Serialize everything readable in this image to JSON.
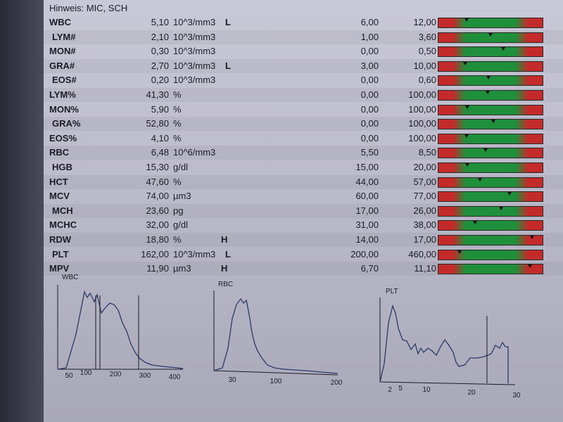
{
  "note": "Hinweis: MIC, SCH",
  "rows": [
    {
      "name": "WBC",
      "value": "5,10",
      "unit": "10^3/mm3",
      "flag": "L",
      "low": "6,00",
      "high": "12,00",
      "level": 0.27
    },
    {
      "name": "LYM#",
      "value": "2,10",
      "unit": "10^3/mm3",
      "flag": "",
      "low": "1,00",
      "high": "3,60",
      "level": 0.5
    },
    {
      "name": "MON#",
      "value": "0,30",
      "unit": "10^3/mm3",
      "flag": "",
      "low": "0,00",
      "high": "0,50",
      "level": 0.62
    },
    {
      "name": "GRA#",
      "value": "2,70",
      "unit": "10^3/mm3",
      "flag": "L",
      "low": "3,00",
      "high": "10,00",
      "level": 0.26
    },
    {
      "name": "EOS#",
      "value": "0,20",
      "unit": "10^3/mm3",
      "flag": "",
      "low": "0,00",
      "high": "0,60",
      "level": 0.48
    },
    {
      "name": "LYM%",
      "value": "41,30",
      "unit": "%",
      "flag": "",
      "low": "0,00",
      "high": "100,00",
      "level": 0.47
    },
    {
      "name": "MON%",
      "value": "5,90",
      "unit": "%",
      "flag": "",
      "low": "0,00",
      "high": "100,00",
      "level": 0.28
    },
    {
      "name": "GRA%",
      "value": "52,80",
      "unit": "%",
      "flag": "",
      "low": "0,00",
      "high": "100,00",
      "level": 0.53
    },
    {
      "name": "EOS%",
      "value": "4,10",
      "unit": "%",
      "flag": "",
      "low": "0,00",
      "high": "100,00",
      "level": 0.27
    },
    {
      "name": "RBC",
      "value": "6,48",
      "unit": "10^6/mm3",
      "flag": "",
      "low": "5,50",
      "high": "8,50",
      "level": 0.45
    },
    {
      "name": "HGB",
      "value": "15,30",
      "unit": "g/dl",
      "flag": "",
      "low": "15,00",
      "high": "20,00",
      "level": 0.28
    },
    {
      "name": "HCT",
      "value": "47,60",
      "unit": "%",
      "flag": "",
      "low": "44,00",
      "high": "57,00",
      "level": 0.4
    },
    {
      "name": "MCV",
      "value": "74,00",
      "unit": "µm3",
      "flag": "",
      "low": "60,00",
      "high": "77,00",
      "level": 0.68
    },
    {
      "name": "MCH",
      "value": "23,60",
      "unit": "pg",
      "flag": "",
      "low": "17,00",
      "high": "26,00",
      "level": 0.6
    },
    {
      "name": "MCHC",
      "value": "32,00",
      "unit": "g/dl",
      "flag": "",
      "low": "31,00",
      "high": "38,00",
      "level": 0.35
    },
    {
      "name": "RDW",
      "value": "18,80",
      "unit": "%",
      "flag": "H",
      "low": "14,00",
      "high": "17,00",
      "level": 0.9
    },
    {
      "name": "PLT",
      "value": "162,00",
      "unit": "10^3/mm3",
      "flag": "L",
      "low": "200,00",
      "high": "460,00",
      "level": 0.2
    },
    {
      "name": "MPV",
      "value": "11,90",
      "unit": "µm3",
      "flag": "H",
      "low": "6,70",
      "high": "11,10",
      "level": 0.88
    }
  ],
  "histograms": {
    "wbc": {
      "title": "WBC",
      "ticks": [
        "50",
        "100",
        "200",
        "300",
        "400"
      ]
    },
    "rbc": {
      "title": "RBC",
      "ticks": [
        "30",
        "100",
        "200"
      ]
    },
    "plt": {
      "title": "PLT",
      "ticks": [
        "2",
        "5",
        "10",
        "20",
        "30"
      ]
    }
  }
}
